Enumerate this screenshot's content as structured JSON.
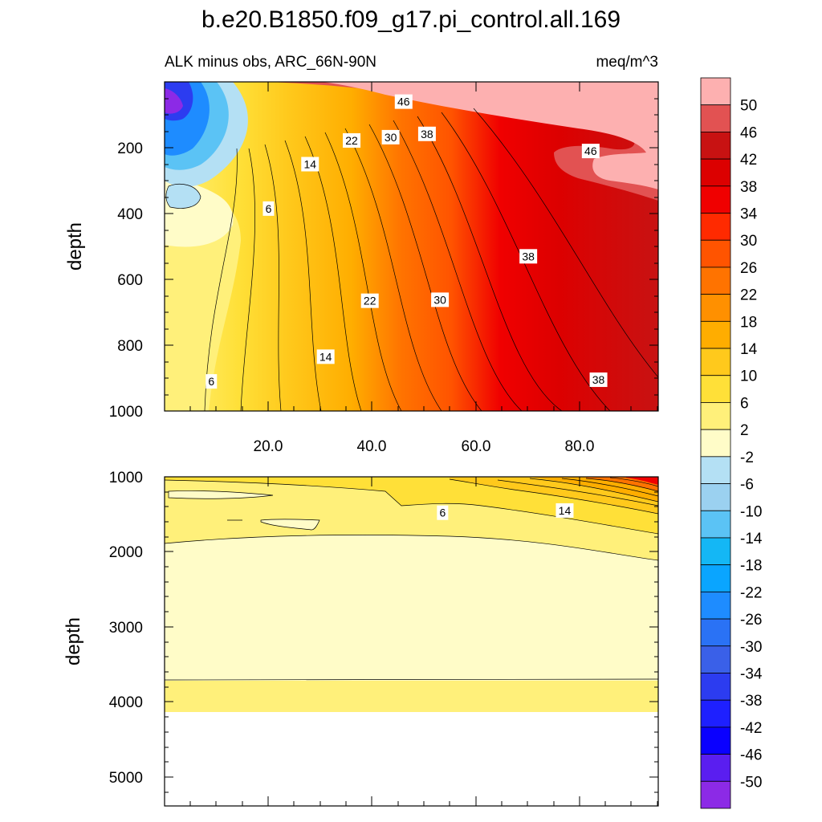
{
  "figure": {
    "title": "b.e20.B1850.f09_g17.pi_control.all.169",
    "subtitle_left": "ALK minus obs, ARC_66N-90N",
    "subtitle_right": "meq/m^3"
  },
  "colorbar": {
    "labels": [
      "50",
      "46",
      "42",
      "38",
      "34",
      "30",
      "26",
      "22",
      "18",
      "14",
      "10",
      "6",
      "2",
      "-2",
      "-6",
      "-10",
      "-14",
      "-18",
      "-22",
      "-26",
      "-30",
      "-34",
      "-38",
      "-42",
      "-46",
      "-50"
    ],
    "colors": [
      "#fdb0b0",
      "#e25252",
      "#c81212",
      "#dc0000",
      "#f00000",
      "#ff2a00",
      "#ff5400",
      "#ff7300",
      "#ff9000",
      "#ffad00",
      "#ffc91c",
      "#ffe038",
      "#fff07a",
      "#fffcc8",
      "#b4e0f4",
      "#9bd1f0",
      "#5bc3f5",
      "#14b7f5",
      "#0aa5ff",
      "#1e8cff",
      "#2a72f5",
      "#3a60e8",
      "#2c3cf0",
      "#1e20ff",
      "#0a00ff",
      "#5a1ef0",
      "#8c2ae6"
    ]
  },
  "chart_data": [
    {
      "type": "heatmap",
      "subtype": "filled-contour",
      "panel": "upper",
      "xlabel": "",
      "ylabel": "depth",
      "xlim": [
        0,
        95
      ],
      "ylim": [
        1000,
        0
      ],
      "x_ticks": [
        "20.0",
        "40.0",
        "60.0",
        "80.0"
      ],
      "y_ticks": [
        "200",
        "400",
        "600",
        "800",
        "1000"
      ],
      "contour_interval": 4,
      "contour_labels": [
        {
          "text": "46",
          "x": 46,
          "y": 60
        },
        {
          "text": "22",
          "x": 36,
          "y": 178
        },
        {
          "text": "30",
          "x": 43.5,
          "y": 168
        },
        {
          "text": "38",
          "x": 50.5,
          "y": 158
        },
        {
          "text": "46",
          "x": 82,
          "y": 210
        },
        {
          "text": "14",
          "x": 28,
          "y": 250
        },
        {
          "text": "6",
          "x": 20,
          "y": 385
        },
        {
          "text": "38",
          "x": 70,
          "y": 530
        },
        {
          "text": "22",
          "x": 39.5,
          "y": 665
        },
        {
          "text": "30",
          "x": 53,
          "y": 662
        },
        {
          "text": "14",
          "x": 31,
          "y": 835
        },
        {
          "text": "6",
          "x": 9,
          "y": 910
        },
        {
          "text": "38",
          "x": 83.5,
          "y": 905
        }
      ]
    },
    {
      "type": "heatmap",
      "subtype": "filled-contour",
      "panel": "lower",
      "xlabel": "",
      "ylabel": "depth",
      "xlim": [
        0,
        95
      ],
      "ylim": [
        5400,
        1000
      ],
      "y_ticks": [
        "1000",
        "2000",
        "3000",
        "4000",
        "5000"
      ],
      "contour_interval": 4,
      "contour_labels": [
        {
          "text": "6",
          "x": 53.5,
          "y": 1480
        },
        {
          "text": "14",
          "x": 77,
          "y": 1450
        }
      ]
    }
  ]
}
